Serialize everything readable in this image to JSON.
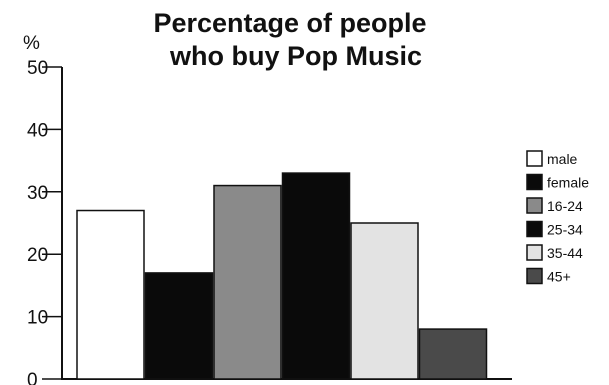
{
  "chart_data": {
    "type": "bar",
    "title_lines": [
      "Percentage of people",
      "who buy Pop Music"
    ],
    "ylabel": "%",
    "ylim": [
      0,
      50
    ],
    "yticks": [
      0,
      10,
      20,
      30,
      40,
      50
    ],
    "grid": false,
    "legend_position": "right",
    "categories": [
      "male",
      "female",
      "16-24",
      "25-34",
      "35-44",
      "45+"
    ],
    "values": [
      27,
      17,
      31,
      33,
      25,
      8
    ],
    "colors": [
      "#ffffff",
      "#0a0a0a",
      "#8a8a8a",
      "#0a0a0a",
      "#e3e3e3",
      "#4a4a4a"
    ]
  }
}
